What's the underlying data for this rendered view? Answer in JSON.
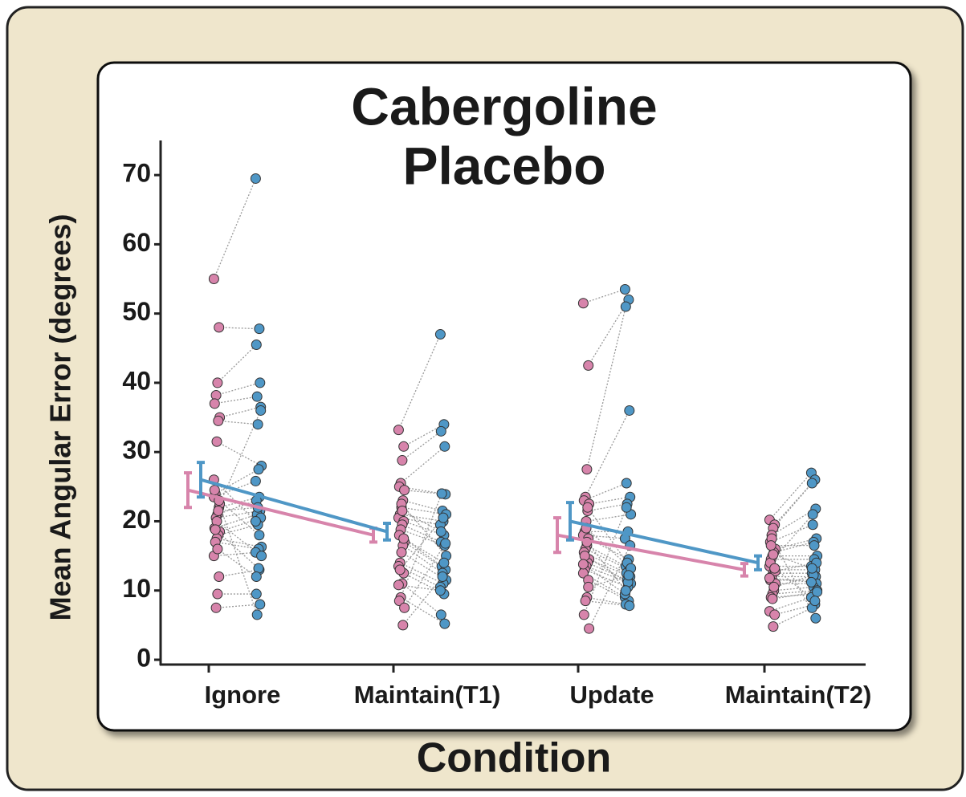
{
  "chart_data": {
    "type": "paired-dot",
    "x_label": "Condition",
    "y_label": "Mean Angular Error (degrees)",
    "categories": [
      "Ignore",
      "Maintain(T1)",
      "Update",
      "Maintain(T2)"
    ],
    "ylim": [
      0,
      75
    ],
    "yticks": [
      0,
      10,
      20,
      30,
      40,
      50,
      60,
      70
    ],
    "series": [
      {
        "name": "Cabergoline",
        "color": "#4f97c6",
        "mean": [
          26,
          18.5,
          20,
          14
        ],
        "error": [
          2.5,
          1.2,
          2.7,
          1
        ],
        "values": [
          [
            69.5,
            47.8,
            45.5,
            40,
            38,
            36.5,
            34,
            28,
            27.5,
            25.8,
            23.5,
            23,
            21.5,
            21,
            20.5,
            19.5,
            16.3,
            16,
            15.5,
            13,
            9.5,
            8,
            6.5,
            36,
            22,
            15,
            13.2,
            20,
            18,
            12
          ],
          [
            47,
            34,
            33,
            30.8,
            24,
            23.9,
            21.5,
            21,
            20,
            19.5,
            18,
            17,
            16.5,
            13.5,
            13,
            12.5,
            11.5,
            11,
            10.5,
            9.5,
            6.5,
            5.2,
            24,
            16.8,
            12,
            15,
            20.5,
            10,
            14,
            18.5
          ],
          [
            53.5,
            52,
            51,
            36,
            25.5,
            23.5,
            22.5,
            21,
            18.5,
            17.5,
            14.5,
            13.5,
            13,
            12.5,
            12,
            11.5,
            11,
            10.5,
            9,
            8.5,
            8,
            7.8,
            22,
            16.5,
            14,
            13.2,
            11.2,
            9.5,
            12.2,
            10
          ],
          [
            27,
            26,
            25.5,
            21.8,
            19.5,
            17.5,
            17,
            15,
            14.5,
            13.5,
            13,
            12.5,
            12,
            11.5,
            11,
            10.5,
            10,
            9.5,
            9,
            8,
            7.5,
            6,
            21,
            14,
            12.2,
            9.8,
            16.5,
            11.2,
            8.5,
            13.2
          ]
        ]
      },
      {
        "name": "Placebo",
        "color": "#d784ab",
        "mean": [
          24.5,
          18,
          18,
          13
        ],
        "error": [
          2.5,
          1,
          2.5,
          0.9
        ],
        "values": [
          [
            55,
            48,
            40,
            38.2,
            37,
            35,
            34.5,
            31.5,
            24,
            23.5,
            22,
            21,
            20.5,
            19,
            18.5,
            18,
            17.5,
            17,
            15,
            12,
            9.5,
            7.5,
            24.5,
            22.5,
            21.5,
            20,
            18.8,
            26,
            23,
            16
          ],
          [
            33.2,
            30.8,
            28.8,
            25.5,
            25,
            24.5,
            23,
            22,
            21,
            20.5,
            20,
            19.5,
            18.8,
            18,
            17,
            16.5,
            15.5,
            14,
            13.5,
            12.5,
            11,
            9,
            8.5,
            7.5,
            5,
            22.5,
            13,
            10.8,
            17.5,
            21.5
          ],
          [
            51.5,
            42.5,
            27.5,
            23.5,
            23,
            22.5,
            21.5,
            20,
            18.5,
            18,
            17.5,
            16.5,
            16,
            15.5,
            14.5,
            14,
            13.5,
            13,
            12.5,
            11.5,
            9,
            8.5,
            6.5,
            4.5,
            22,
            19,
            15,
            13.8,
            10.5,
            17
          ],
          [
            20.2,
            19.5,
            19,
            18,
            17,
            16,
            15.5,
            15,
            14.5,
            13.5,
            13,
            12.5,
            12,
            11.5,
            11,
            10,
            9.5,
            9,
            7,
            6.5,
            4.8,
            17.5,
            14,
            12.8,
            10.5,
            8.8,
            16.5,
            11.8,
            13.2,
            15.2
          ]
        ]
      }
    ]
  }
}
